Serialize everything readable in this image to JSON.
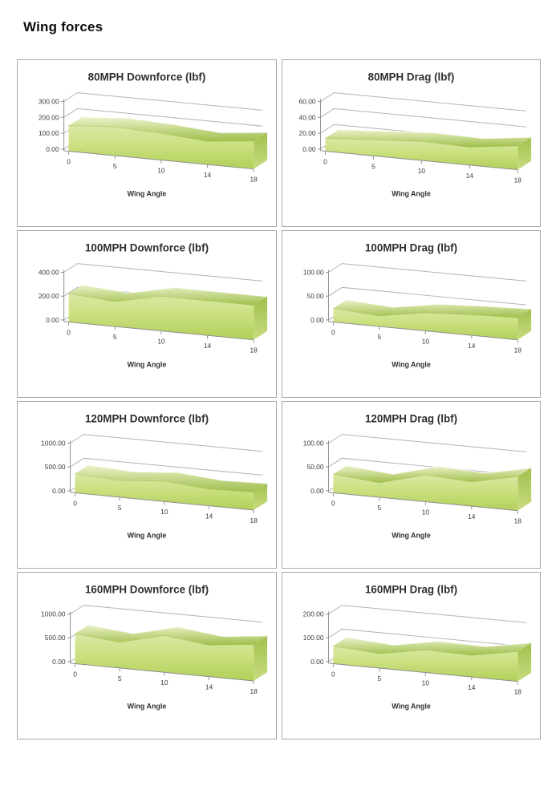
{
  "page": {
    "title": "Wing forces"
  },
  "theme": {
    "area_front_top": "#d9e9a6",
    "area_front_mid": "#cbe07f",
    "area_front_bottom": "#b2d05a",
    "ribbon_light": "#ecf3cb",
    "ribbon_dark": "#9fbe4b",
    "side_top": "#a0c04c",
    "side_bottom": "#c9dc80",
    "grid_color": "#b3b3b3",
    "axis_color": "#8e8e8e",
    "text_color": "#3c3c3c",
    "title_color": "#2e2e2e",
    "panel_border": "#a8a8a8"
  },
  "chart_data": [
    {
      "type": "area",
      "projection": "3d",
      "legend": "none",
      "grid": true,
      "title": "80MPH Downforce (lbf)",
      "xlabel": "Wing Angle",
      "categories": [
        0,
        5,
        10,
        14,
        18
      ],
      "x_labels": [
        "0",
        "5",
        "10",
        "14",
        "18"
      ],
      "values": [
        155,
        178,
        168,
        148,
        182
      ],
      "ylim": [
        0,
        300
      ],
      "ytick_step": 100,
      "y_tick_labels": [
        "300.00",
        "200.00",
        "100.00",
        "0.00"
      ]
    },
    {
      "type": "area",
      "projection": "3d",
      "legend": "none",
      "grid": true,
      "title": "80MPH Drag (lbf)",
      "xlabel": "Wing Angle",
      "categories": [
        0,
        5,
        10,
        14,
        18
      ],
      "x_labels": [
        "0",
        "5",
        "10",
        "14",
        "18"
      ],
      "values": [
        16,
        20,
        24,
        23,
        31
      ],
      "ylim": [
        0,
        60
      ],
      "ytick_step": 20,
      "y_tick_labels": [
        "60.00",
        "40.00",
        "20.00",
        "0.00"
      ]
    },
    {
      "type": "area",
      "projection": "3d",
      "legend": "none",
      "grid": true,
      "title": "100MPH Downforce (lbf)",
      "xlabel": "Wing Angle",
      "categories": [
        0,
        5,
        10,
        14,
        18
      ],
      "x_labels": [
        "0",
        "5",
        "10",
        "14",
        "18"
      ],
      "values": [
        230,
        205,
        290,
        295,
        300
      ],
      "ylim": [
        0,
        400
      ],
      "ytick_step": 200,
      "y_tick_labels": [
        "400.00",
        "200.00",
        "0.00"
      ]
    },
    {
      "type": "area",
      "projection": "3d",
      "legend": "none",
      "grid": true,
      "title": "100MPH Drag (lbf)",
      "xlabel": "Wing Angle",
      "categories": [
        0,
        5,
        10,
        14,
        18
      ],
      "x_labels": [
        "0",
        "5",
        "10",
        "14",
        "18"
      ],
      "values": [
        28,
        22,
        38,
        44,
        48
      ],
      "ylim": [
        0,
        100
      ],
      "ytick_step": 50,
      "y_tick_labels": [
        "100.00",
        "50.00",
        "0.00"
      ]
    },
    {
      "type": "area",
      "projection": "3d",
      "legend": "none",
      "grid": true,
      "title": "120MPH Downforce (lbf)",
      "xlabel": "Wing Angle",
      "categories": [
        0,
        5,
        10,
        14,
        18
      ],
      "x_labels": [
        "0",
        "5",
        "10",
        "14",
        "18"
      ],
      "values": [
        390,
        345,
        425,
        355,
        390
      ],
      "ylim": [
        0,
        1000
      ],
      "ytick_step": 500,
      "y_tick_labels": [
        "1000.00",
        "500.00",
        "0.00"
      ]
    },
    {
      "type": "area",
      "projection": "3d",
      "legend": "none",
      "grid": true,
      "title": "120MPH Drag (lbf)",
      "xlabel": "Wing Angle",
      "categories": [
        0,
        5,
        10,
        14,
        18
      ],
      "x_labels": [
        "0",
        "5",
        "10",
        "14",
        "18"
      ],
      "values": [
        38,
        30,
        56,
        52,
        74
      ],
      "ylim": [
        0,
        100
      ],
      "ytick_step": 50,
      "y_tick_labels": [
        "100.00",
        "50.00",
        "0.00"
      ]
    },
    {
      "type": "area",
      "projection": "3d",
      "legend": "none",
      "grid": true,
      "title": "160MPH Downforce (lbf)",
      "xlabel": "Wing Angle",
      "categories": [
        0,
        5,
        10,
        14,
        18
      ],
      "x_labels": [
        "0",
        "5",
        "10",
        "14",
        "18"
      ],
      "values": [
        610,
        530,
        770,
        670,
        790
      ],
      "ylim": [
        0,
        1000
      ],
      "ytick_step": 500,
      "y_tick_labels": [
        "1000.00",
        "500.00",
        "0.00"
      ]
    },
    {
      "type": "area",
      "projection": "3d",
      "legend": "none",
      "grid": true,
      "title": "160MPH Drag (lbf)",
      "xlabel": "Wing Angle",
      "categories": [
        0,
        5,
        10,
        14,
        18
      ],
      "x_labels": [
        "0",
        "5",
        "10",
        "14",
        "18"
      ],
      "values": [
        72,
        60,
        95,
        93,
        130
      ],
      "ylim": [
        0,
        200
      ],
      "ytick_step": 100,
      "y_tick_labels": [
        "200.00",
        "100.00",
        "0.00"
      ]
    }
  ]
}
